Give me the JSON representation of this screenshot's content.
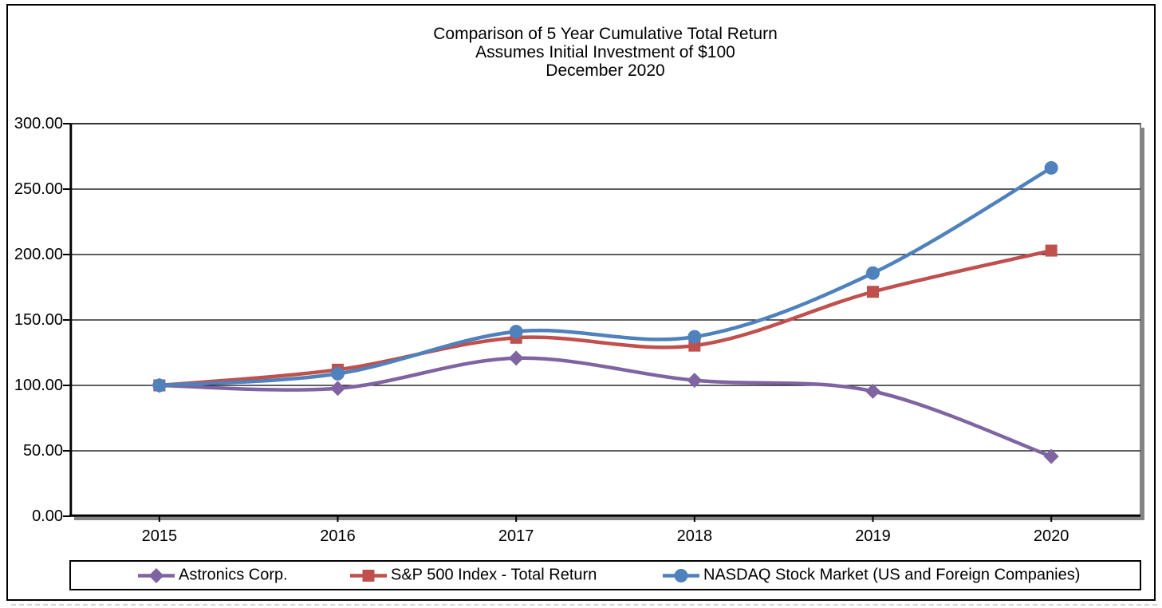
{
  "title": {
    "line1": "Comparison of 5 Year Cumulative Total Return",
    "line2": "Assumes Initial Investment of $100",
    "line3": "December 2020"
  },
  "chart_data": {
    "type": "line",
    "smooth": true,
    "title": "Comparison of 5 Year Cumulative Total Return - Assumes Initial Investment of $100 - December 2020",
    "xlabel": "",
    "ylabel": "",
    "categories": [
      "2015",
      "2016",
      "2017",
      "2018",
      "2019",
      "2020"
    ],
    "series": [
      {
        "name": "Astronics Corp.",
        "color": "#8064A2",
        "marker": "diamond",
        "values": [
          100.0,
          97.7,
          120.8,
          103.9,
          95.5,
          45.7
        ]
      },
      {
        "name": "S&P 500 Index - Total Return",
        "color": "#C0504D",
        "marker": "square",
        "values": [
          100.0,
          112.0,
          136.4,
          130.4,
          171.5,
          203.0
        ]
      },
      {
        "name": "NASDAQ Stock Market (US and Foreign Companies)",
        "color": "#4F81BD",
        "marker": "circle",
        "values": [
          100.0,
          108.9,
          141.1,
          137.1,
          185.8,
          266.2
        ]
      }
    ],
    "ylim": [
      0,
      300
    ],
    "ytick_step": 50,
    "ytick_labels": [
      "0.00",
      "50.00",
      "100.00",
      "150.00",
      "200.00",
      "250.00",
      "300.00"
    ],
    "grid": true,
    "legend_position": "bottom"
  },
  "colors": {
    "gridline": "#000000",
    "axis": "#000000",
    "plot_border": "#848484",
    "plot_shadow": "#848484",
    "frame_border": "#000000",
    "background": "#ffffff"
  }
}
